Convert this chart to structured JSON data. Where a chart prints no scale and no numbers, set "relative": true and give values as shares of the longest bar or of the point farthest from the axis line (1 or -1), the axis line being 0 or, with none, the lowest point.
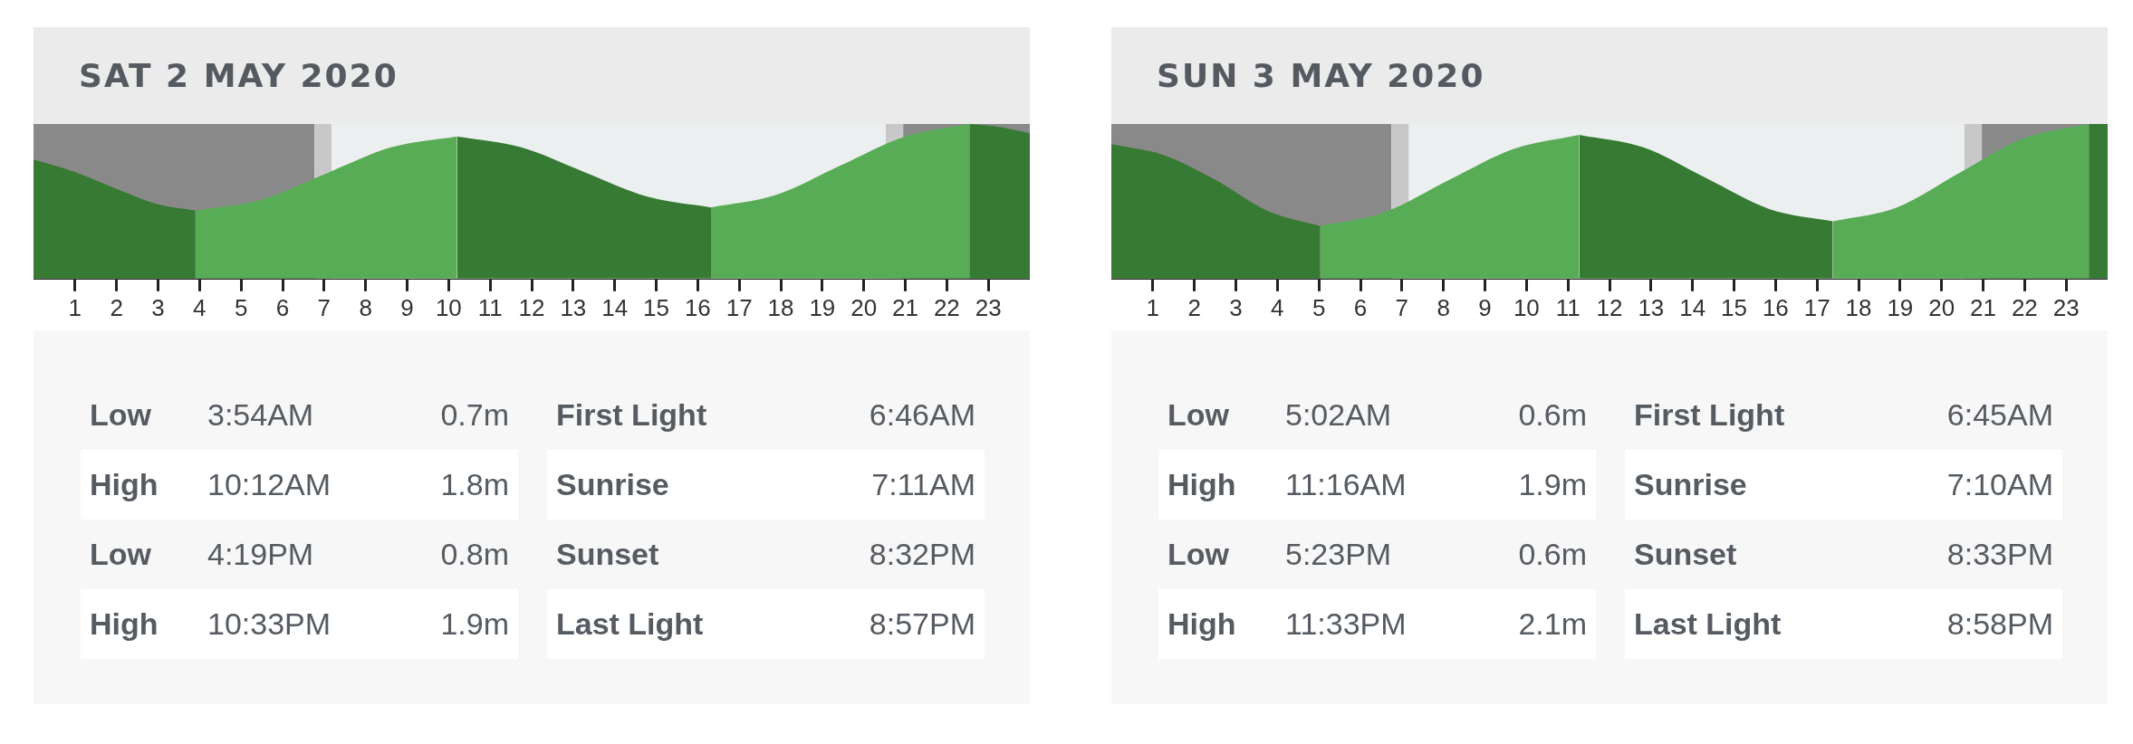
{
  "chart_data": [
    {
      "type": "area",
      "title": "SAT 2 MAY 2020",
      "relative": true,
      "xlim": [
        0,
        24
      ],
      "xticks": [
        1,
        2,
        3,
        4,
        5,
        6,
        7,
        8,
        9,
        10,
        11,
        12,
        13,
        14,
        15,
        16,
        17,
        18,
        19,
        20,
        21,
        22,
        23
      ],
      "tick_labels": "x",
      "series": [
        {
          "color": "#367a33",
          "x": [
            0,
            1,
            2,
            3,
            3.9
          ],
          "values": [
            0.77,
            0.69,
            0.58,
            0.48,
            0.44
          ]
        },
        {
          "color": "#58ac55",
          "x": [
            3.9,
            5.48,
            7.05,
            8.63,
            10.2
          ],
          "values": [
            0.44,
            0.51,
            0.68,
            0.85,
            0.92
          ]
        },
        {
          "color": "#367a33",
          "x": [
            10.2,
            11.73,
            13.26,
            14.79,
            16.32
          ],
          "values": [
            0.92,
            0.85,
            0.69,
            0.53,
            0.46
          ]
        },
        {
          "color": "#58ac55",
          "x": [
            16.32,
            17.88,
            19.43,
            21,
            22.55
          ],
          "values": [
            0.46,
            0.54,
            0.73,
            0.92,
            1
          ]
        },
        {
          "color": "#367a33",
          "x": [
            22.55,
            23.3,
            24
          ],
          "values": [
            1,
            0.98,
            0.94
          ]
        }
      ],
      "bands": [
        {
          "axis": "x",
          "from": 0,
          "to": 6.77,
          "color": "#898989"
        },
        {
          "axis": "x",
          "from": 6.77,
          "to": 7.18,
          "color": "#c8c8c8"
        },
        {
          "axis": "x",
          "from": 7.18,
          "to": 20.53,
          "color": "#eceff0"
        },
        {
          "axis": "x",
          "from": 20.53,
          "to": 20.95,
          "color": "#c8c8c8"
        },
        {
          "axis": "x",
          "from": 20.95,
          "to": 24,
          "color": "#898989"
        }
      ],
      "annotations": [
        "Low",
        "3:54AM",
        "0.7m",
        "High",
        "10:12AM",
        "1.8m",
        "Low",
        "4:19PM",
        "0.8m",
        "High",
        "10:33PM",
        "1.9m",
        "First Light",
        "6:46AM",
        "Sunrise",
        "7:11AM",
        "Sunset",
        "8:32PM",
        "Last Light",
        "8:57PM"
      ]
    },
    {
      "type": "area",
      "title": "SUN 3 MAY 2020",
      "relative": true,
      "xlim": [
        0,
        24
      ],
      "xticks": [
        1,
        2,
        3,
        4,
        5,
        6,
        7,
        8,
        9,
        10,
        11,
        12,
        13,
        14,
        15,
        16,
        17,
        18,
        19,
        20,
        21,
        22,
        23
      ],
      "tick_labels": "x",
      "series": [
        {
          "color": "#367a33",
          "x": [
            0,
            1.25,
            2.5,
            3.75,
            5.03
          ],
          "values": [
            0.87,
            0.8,
            0.64,
            0.44,
            0.34
          ]
        },
        {
          "color": "#58ac55",
          "x": [
            5.03,
            6.59,
            8.15,
            9.71,
            11.27
          ],
          "values": [
            0.34,
            0.43,
            0.64,
            0.84,
            0.93
          ]
        },
        {
          "color": "#367a33",
          "x": [
            11.27,
            12.8,
            14.33,
            15.85,
            17.38
          ],
          "values": [
            0.93,
            0.85,
            0.65,
            0.45,
            0.37
          ]
        },
        {
          "color": "#58ac55",
          "x": [
            17.38,
            18.92,
            20.47,
            22.01,
            23.55
          ],
          "values": [
            0.37,
            0.46,
            0.69,
            0.91,
            1
          ]
        },
        {
          "color": "#367a33",
          "x": [
            23.55,
            24
          ],
          "values": [
            1,
            1
          ]
        }
      ],
      "bands": [
        {
          "axis": "x",
          "from": 0,
          "to": 6.75,
          "color": "#898989"
        },
        {
          "axis": "x",
          "from": 6.75,
          "to": 7.17,
          "color": "#c8c8c8"
        },
        {
          "axis": "x",
          "from": 7.17,
          "to": 20.55,
          "color": "#eceff0"
        },
        {
          "axis": "x",
          "from": 20.55,
          "to": 20.97,
          "color": "#c8c8c8"
        },
        {
          "axis": "x",
          "from": 20.97,
          "to": 24,
          "color": "#898989"
        }
      ],
      "annotations": [
        "Low",
        "5:02AM",
        "0.6m",
        "High",
        "11:16AM",
        "1.9m",
        "Low",
        "5:23PM",
        "0.6m",
        "High",
        "11:33PM",
        "2.1m",
        "First Light",
        "6:45AM",
        "Sunrise",
        "7:10AM",
        "Sunset",
        "8:33PM",
        "Last Light",
        "8:58PM"
      ]
    }
  ]
}
